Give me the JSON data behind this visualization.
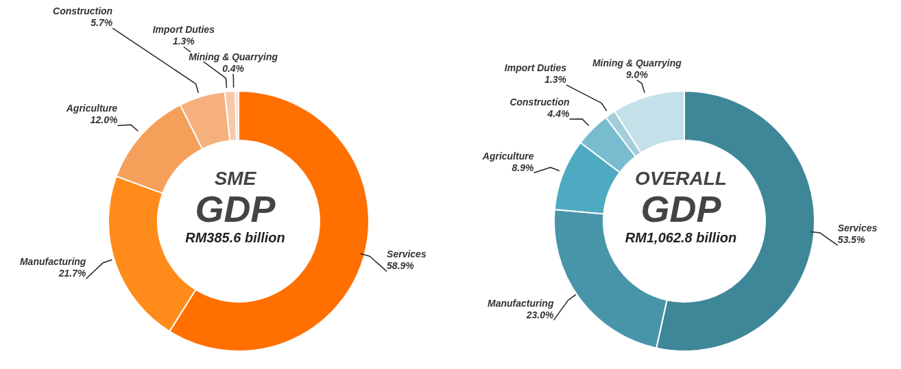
{
  "chart_data": [
    {
      "type": "donut",
      "title": "SME",
      "subtitle": "GDP",
      "annotations": [
        "RM385.6 billion"
      ],
      "categories": [
        "Services",
        "Manufacturing",
        "Agriculture",
        "Construction",
        "Import Duties",
        "Mining & Quarrying"
      ],
      "values": [
        58.9,
        21.7,
        12.0,
        5.7,
        1.3,
        0.4
      ],
      "value_labels": [
        "58.9%",
        "21.7%",
        "12.0%",
        "5.7%",
        "1.3%",
        "0.4%"
      ],
      "colors": [
        "#ff7000",
        "#ff8c1a",
        "#f5a05a",
        "#f5b07e",
        "#f7c8a8",
        "#fbd9c3"
      ],
      "legend": false
    },
    {
      "type": "donut",
      "title": "OVERALL",
      "subtitle": "GDP",
      "annotations": [
        "RM1,062.8 billion"
      ],
      "categories": [
        "Services",
        "Manufacturing",
        "Agriculture",
        "Construction",
        "Import Duties",
        "Mining & Quarrying"
      ],
      "values": [
        53.5,
        23.0,
        8.9,
        4.4,
        1.3,
        9.0
      ],
      "value_labels": [
        "53.5%",
        "23.0%",
        "8.9%",
        "4.4%",
        "1.3%",
        "9.0%"
      ],
      "colors": [
        "#3e8799",
        "#4895aa",
        "#4eaac0",
        "#79bccf",
        "#a3ced9",
        "#c4e0e8"
      ],
      "legend": false
    }
  ]
}
